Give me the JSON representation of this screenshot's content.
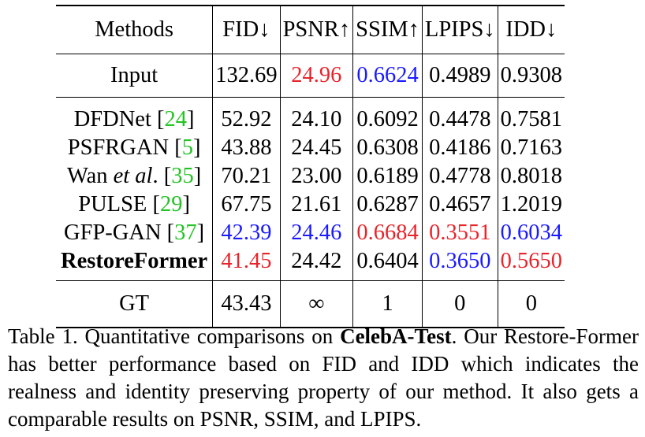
{
  "table": {
    "headers": [
      "Methods",
      "FID↓",
      "PSNR↑",
      "SSIM↑",
      "LPIPS↓",
      "IDD↓"
    ],
    "input_row": {
      "name": "Input",
      "values": [
        {
          "text": "132.69",
          "style": "plain"
        },
        {
          "text": "24.96",
          "style": "best"
        },
        {
          "text": "0.6624",
          "style": "second"
        },
        {
          "text": "0.4989",
          "style": "plain"
        },
        {
          "text": "0.9308",
          "style": "plain"
        }
      ]
    },
    "model_rows": [
      {
        "name": "DFDNet",
        "name_prefix": "",
        "name_italic": "",
        "ref": "24",
        "bold": false,
        "values": [
          {
            "text": "52.92",
            "style": "plain"
          },
          {
            "text": "24.10",
            "style": "plain"
          },
          {
            "text": "0.6092",
            "style": "plain"
          },
          {
            "text": "0.4478",
            "style": "plain"
          },
          {
            "text": "0.7581",
            "style": "plain"
          }
        ]
      },
      {
        "name": "PSFRGAN",
        "name_prefix": "",
        "name_italic": "",
        "ref": "5",
        "bold": false,
        "values": [
          {
            "text": "43.88",
            "style": "plain"
          },
          {
            "text": "24.45",
            "style": "plain"
          },
          {
            "text": "0.6308",
            "style": "plain"
          },
          {
            "text": "0.4186",
            "style": "plain"
          },
          {
            "text": "0.7163",
            "style": "plain"
          }
        ]
      },
      {
        "name": "Wan",
        "name_prefix": "",
        "name_italic": "et al",
        "ref": "35",
        "bold": false,
        "values": [
          {
            "text": "70.21",
            "style": "plain"
          },
          {
            "text": "23.00",
            "style": "plain"
          },
          {
            "text": "0.6189",
            "style": "plain"
          },
          {
            "text": "0.4778",
            "style": "plain"
          },
          {
            "text": "0.8018",
            "style": "plain"
          }
        ]
      },
      {
        "name": "PULSE",
        "name_prefix": "",
        "name_italic": "",
        "ref": "29",
        "bold": false,
        "values": [
          {
            "text": "67.75",
            "style": "plain"
          },
          {
            "text": "21.61",
            "style": "plain"
          },
          {
            "text": "0.6287",
            "style": "plain"
          },
          {
            "text": "0.4657",
            "style": "plain"
          },
          {
            "text": "1.2019",
            "style": "plain"
          }
        ]
      },
      {
        "name": "GFP-GAN",
        "name_prefix": "",
        "name_italic": "",
        "ref": "37",
        "bold": false,
        "values": [
          {
            "text": "42.39",
            "style": "second"
          },
          {
            "text": "24.46",
            "style": "second"
          },
          {
            "text": "0.6684",
            "style": "best"
          },
          {
            "text": "0.3551",
            "style": "best"
          },
          {
            "text": "0.6034",
            "style": "second"
          }
        ]
      },
      {
        "name": "RestoreFormer",
        "name_prefix": "",
        "name_italic": "",
        "ref": "",
        "bold": true,
        "values": [
          {
            "text": "41.45",
            "style": "best"
          },
          {
            "text": "24.42",
            "style": "plain"
          },
          {
            "text": "0.6404",
            "style": "plain"
          },
          {
            "text": "0.3650",
            "style": "second"
          },
          {
            "text": "0.5650",
            "style": "best"
          }
        ]
      }
    ],
    "gt_row": {
      "name": "GT",
      "values": [
        {
          "text": "43.43",
          "style": "plain"
        },
        {
          "text": "∞",
          "style": "plain"
        },
        {
          "text": "1",
          "style": "plain"
        },
        {
          "text": "0",
          "style": "plain"
        },
        {
          "text": "0",
          "style": "plain"
        }
      ]
    }
  },
  "colors": {
    "best": "#e8242b",
    "second": "#1a1aff",
    "citation": "#22c322"
  },
  "caption": {
    "lead": "Table 1. Quantitative comparisons on ",
    "bold": "CelebA-Test",
    "rest": ". Our Restore-Former has better performance based on FID and IDD which indicates the realness and identity preserving property of our method. It also gets a comparable results on PSNR, SSIM, and LPIPS."
  }
}
